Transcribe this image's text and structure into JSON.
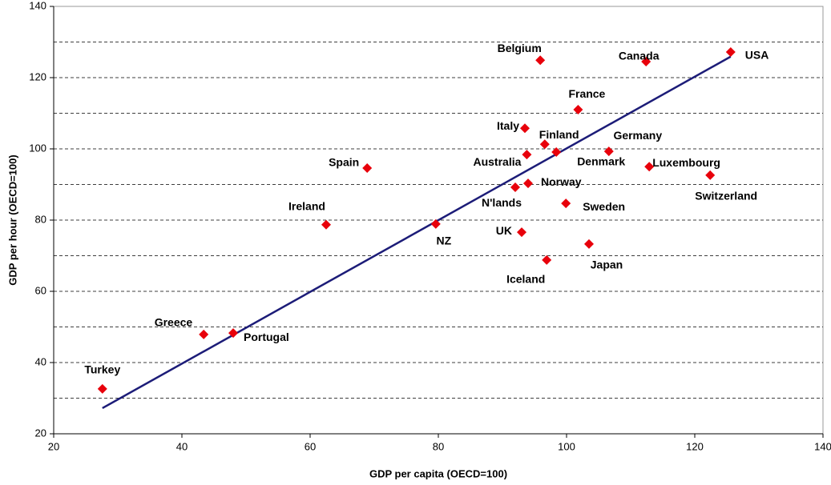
{
  "chart_data": {
    "type": "scatter",
    "x_label": "GDP per capita (OECD=100)",
    "y_label": "GDP per hour (OECD=100)",
    "labels": [
      "Turkey",
      "Greece",
      "Portugal",
      "Ireland",
      "Spain",
      "NZ",
      "UK",
      "N'lands",
      "Norway",
      "Australia",
      "Italy",
      "Finland",
      "Denmark",
      "Belgium",
      "France",
      "Germany",
      "Sweden",
      "Iceland",
      "Japan",
      "Luxembourg",
      "Switzerland",
      "Canada",
      "USA"
    ],
    "x": [
      27.6,
      43.4,
      48.0,
      62.5,
      68.9,
      79.6,
      93.0,
      92.0,
      94.0,
      93.8,
      93.5,
      96.6,
      98.4,
      95.9,
      101.8,
      106.6,
      99.9,
      96.9,
      103.5,
      112.9,
      122.4,
      112.4,
      125.6
    ],
    "y": [
      32.6,
      47.9,
      48.3,
      78.7,
      94.6,
      78.9,
      76.6,
      89.2,
      90.3,
      98.4,
      105.8,
      101.3,
      99.1,
      124.9,
      111.0,
      99.3,
      84.7,
      68.8,
      73.3,
      95.0,
      92.6,
      124.5,
      127.2
    ],
    "color": "#e8000b",
    "trendline": {
      "x": [
        27.6,
        125.6
      ],
      "y": [
        27.2,
        125.9
      ],
      "color": "#1c1c78"
    },
    "xlim": [
      20,
      140
    ],
    "xticks": [
      20,
      40,
      60,
      80,
      100,
      120,
      140
    ],
    "ylim": [
      20,
      140
    ],
    "yticks": [
      20,
      40,
      60,
      80,
      100,
      120,
      140
    ],
    "y_grid": [
      30,
      40,
      50,
      60,
      70,
      80,
      90,
      100,
      110,
      120,
      130
    ],
    "grid": true
  }
}
